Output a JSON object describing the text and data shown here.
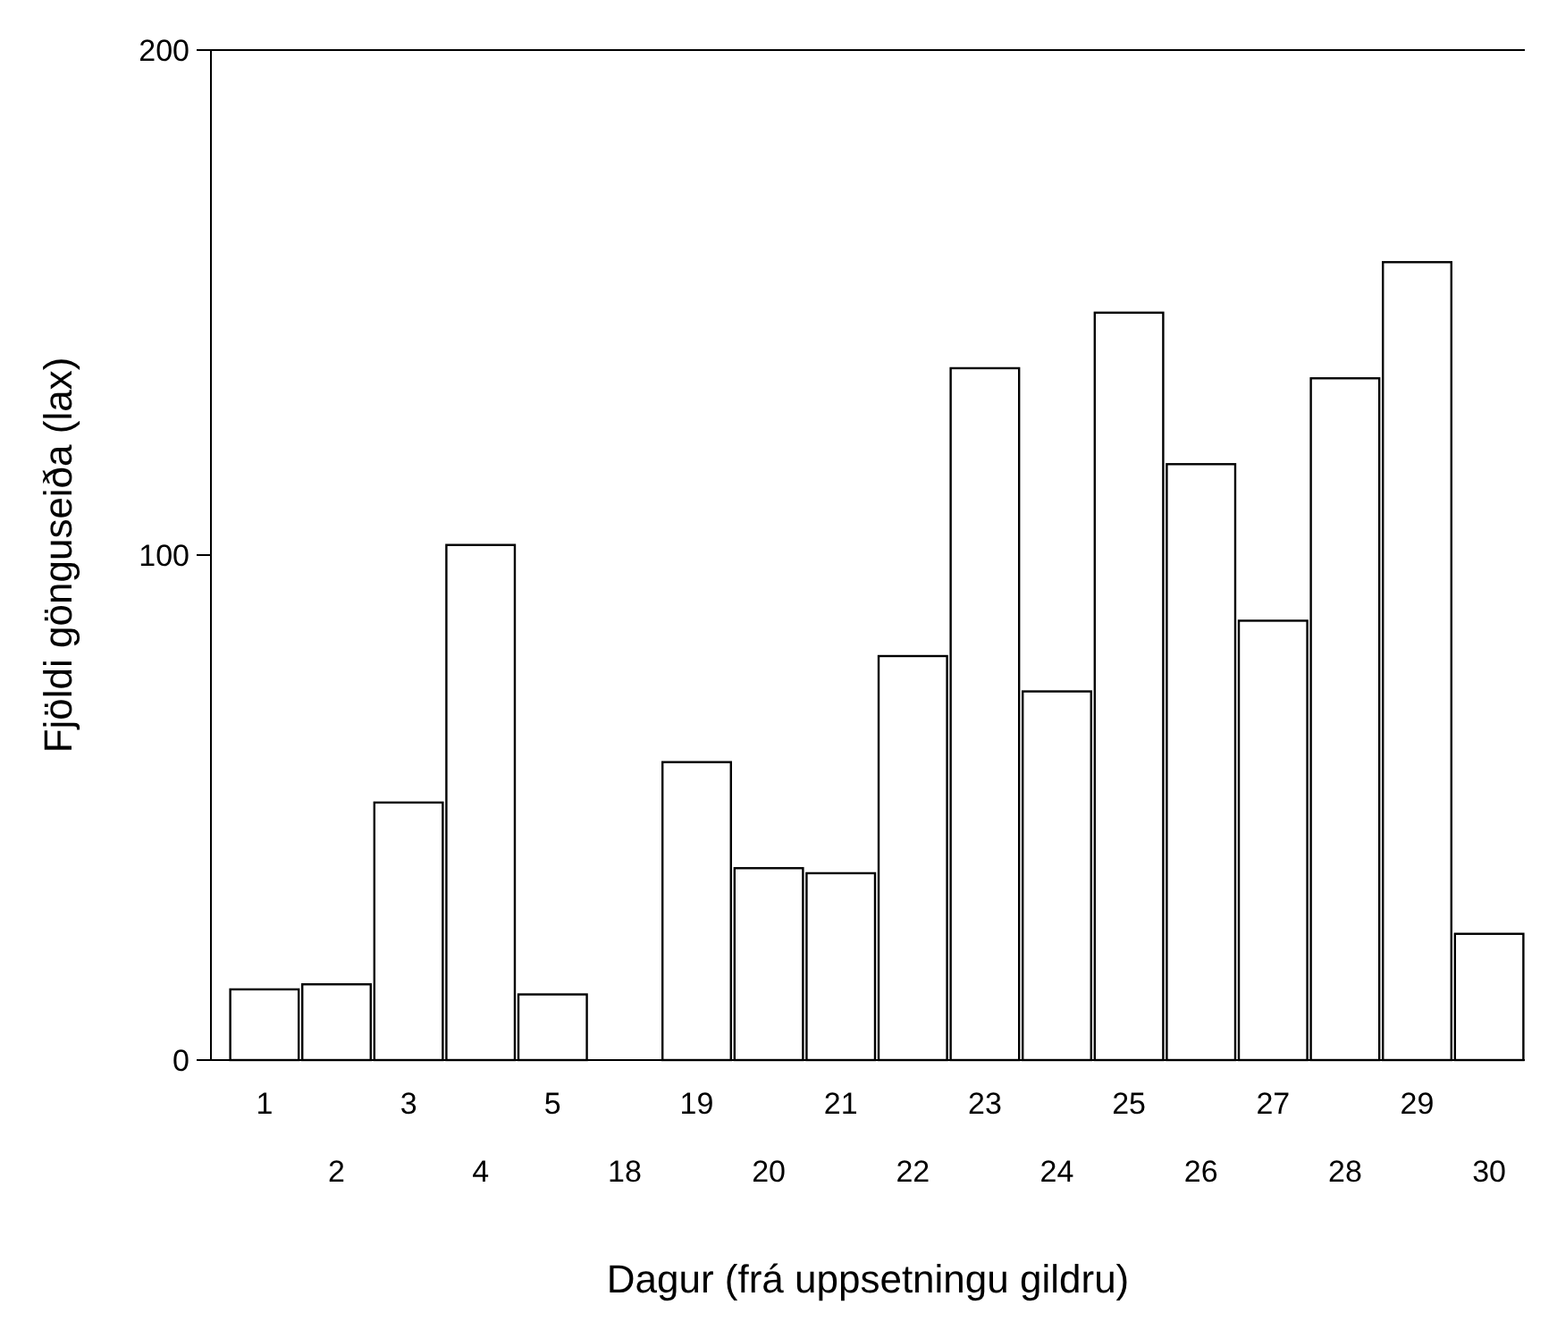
{
  "chart_data": {
    "type": "bar",
    "xlabel": "Dagur (frá uppsetningu gildru)",
    "ylabel": "Fjöldi gönguseiða (lax)",
    "categories": [
      "1",
      "2",
      "3",
      "4",
      "5",
      "18",
      "19",
      "20",
      "21",
      "22",
      "23",
      "24",
      "25",
      "26",
      "27",
      "28",
      "29",
      "30"
    ],
    "values": [
      14,
      15,
      51,
      102,
      13,
      0,
      59,
      38,
      37,
      80,
      137,
      73,
      148,
      118,
      87,
      135,
      158,
      25
    ],
    "color": "#ffffff",
    "ylim": [
      0,
      200
    ],
    "yticks": [
      0,
      100,
      200
    ]
  }
}
